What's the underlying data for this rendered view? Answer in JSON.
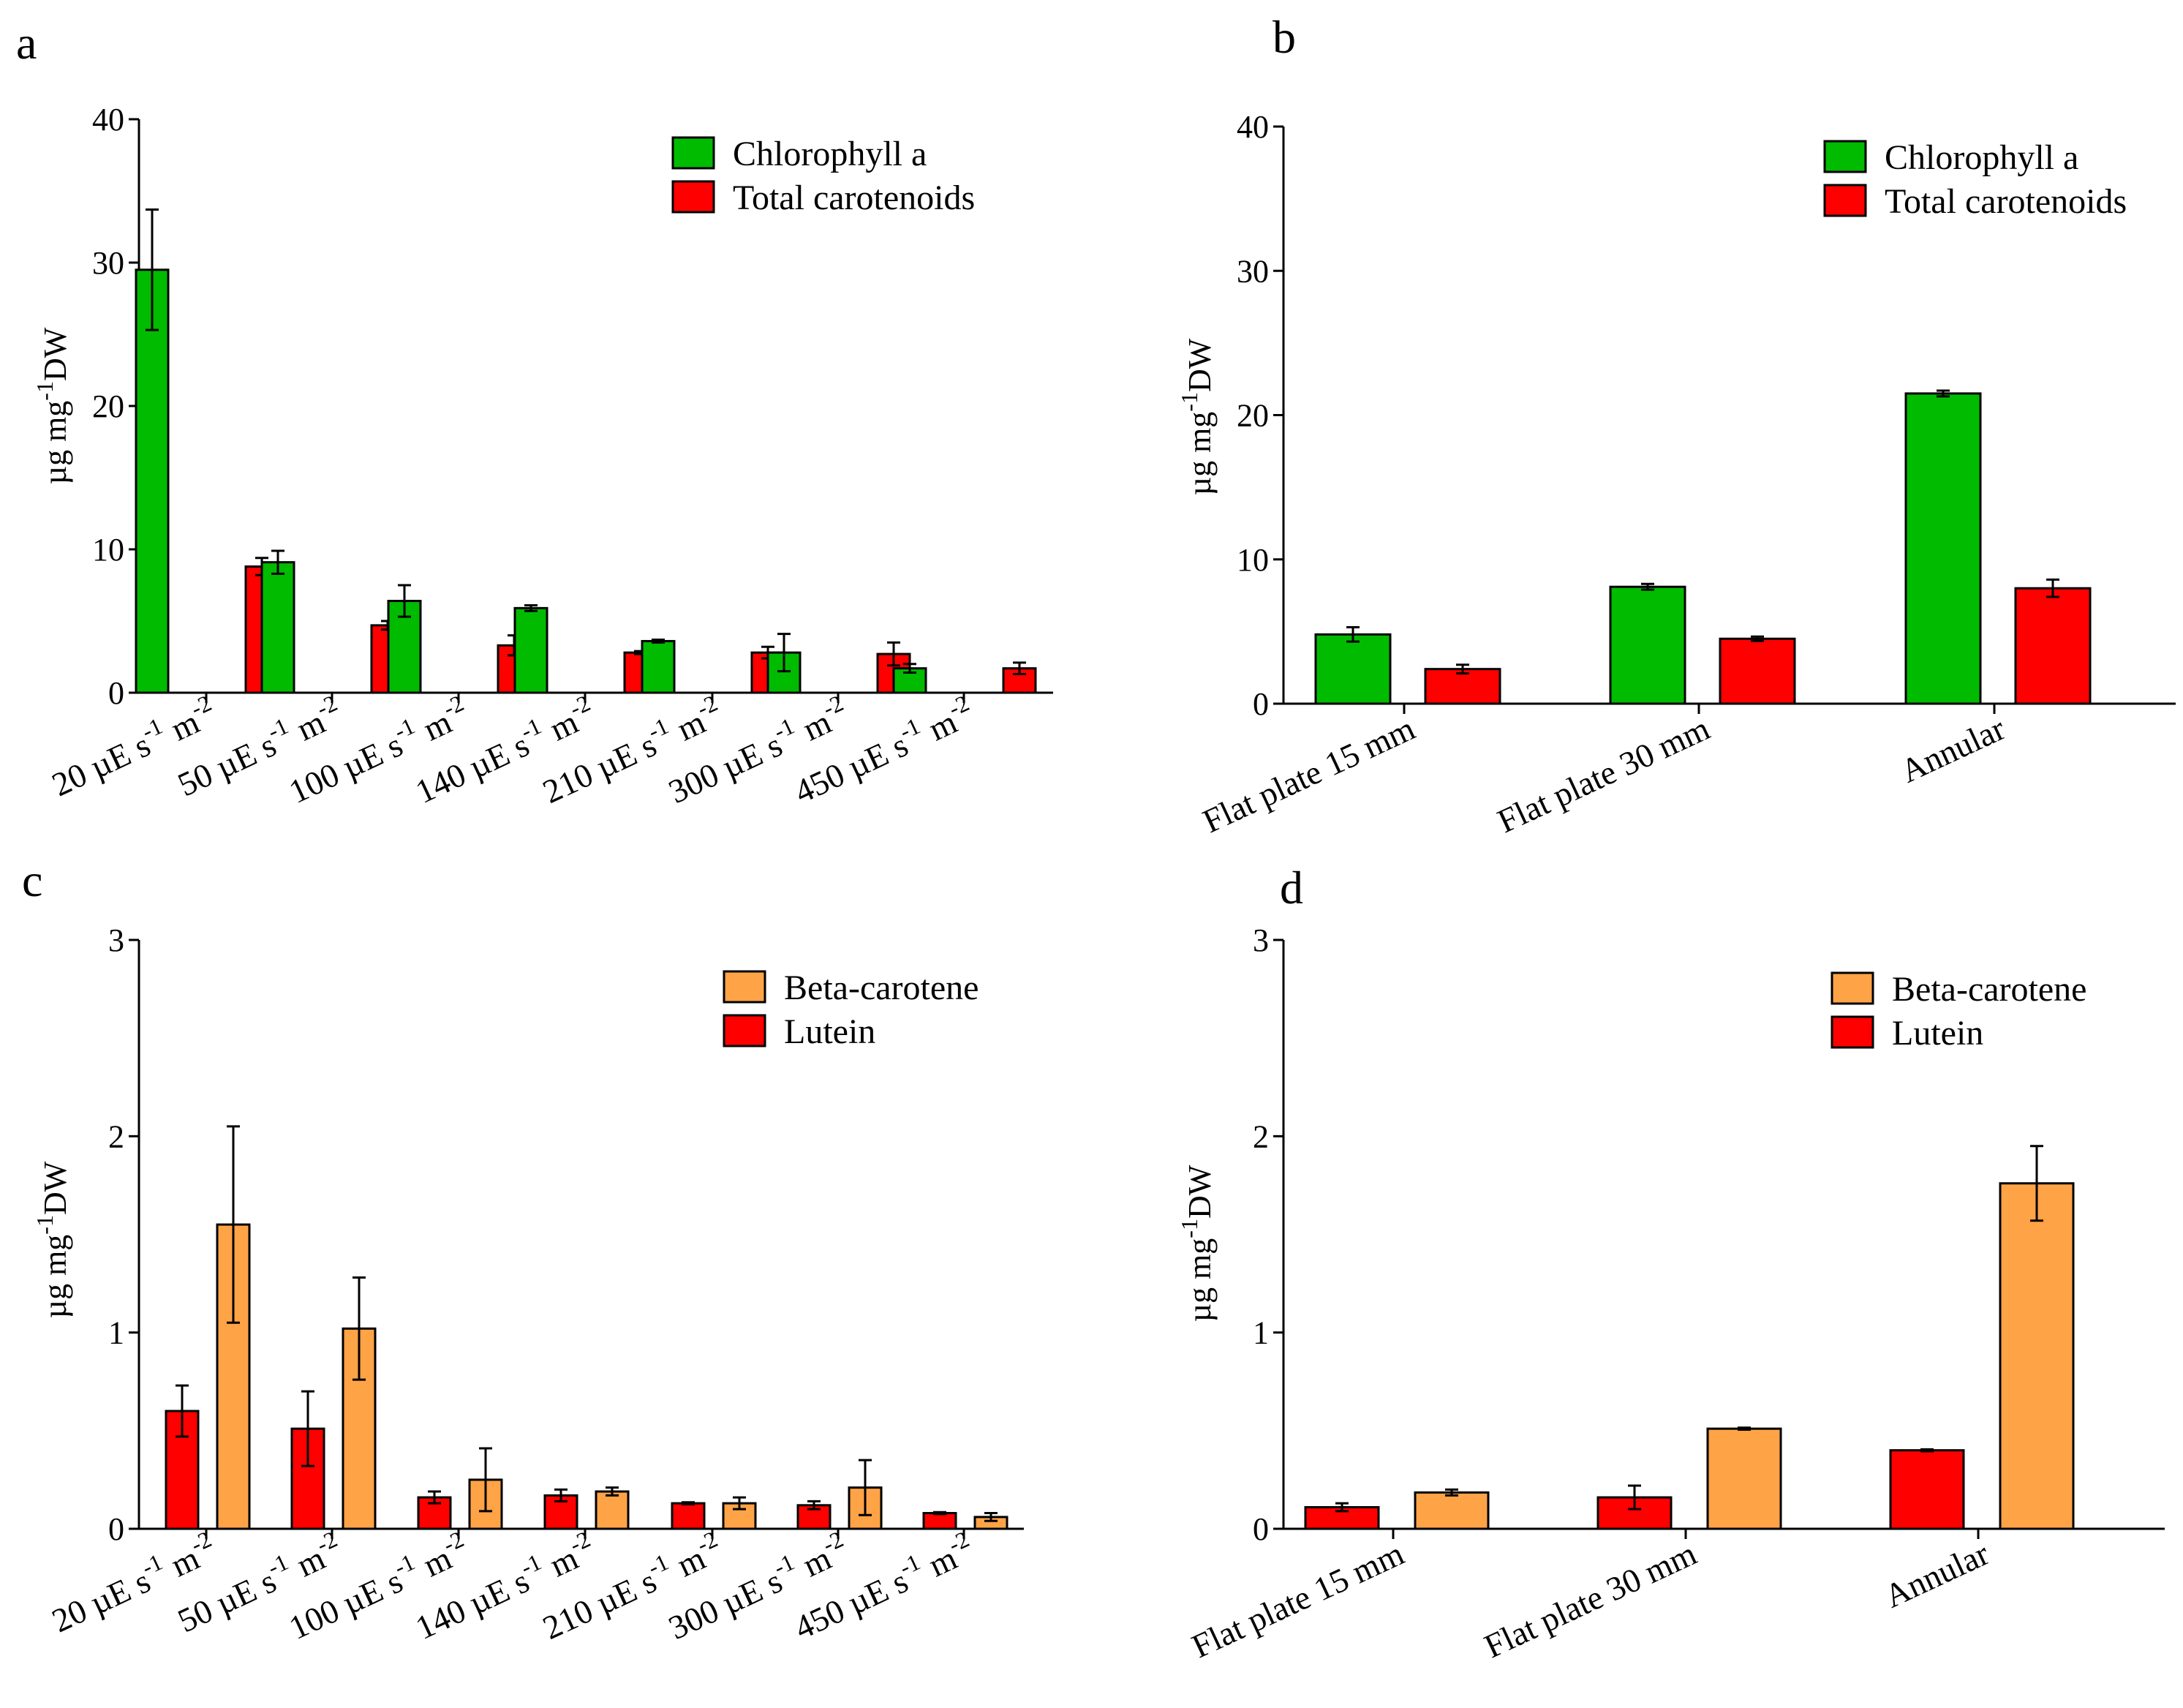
{
  "colors": {
    "chlorophyll": "#00bb00",
    "carotenoids": "#ff0000",
    "beta_carotene": "#ffa347",
    "lutein": "#ff0000"
  },
  "chart_data": [
    {
      "panel": "a",
      "type": "bar",
      "ylabel": "µg mg-1DW",
      "ylim": [
        0,
        40
      ],
      "yticks": [
        0,
        10,
        20,
        30,
        40
      ],
      "categories": [
        "20 µE s-1 m-2",
        "50 µE s-1 m-2",
        "100 µE s-1 m-2",
        "140 µE s-1 m-2",
        "210 µE s-1 m-2",
        "300 µE s-1 m-2",
        "450 µE s-1 m-2"
      ],
      "series": [
        {
          "name": "Chlorophyll a",
          "color": "#00bb00",
          "values": [
            29.5,
            9.1,
            6.4,
            5.9,
            3.6,
            2.8,
            1.7
          ],
          "errors": [
            4.2,
            0.8,
            1.1,
            0.2,
            0.1,
            1.3,
            0.3
          ]
        },
        {
          "name": "Total carotenoids",
          "color": "#ff0000",
          "values": [
            8.8,
            4.7,
            3.3,
            2.8,
            2.8,
            2.7,
            1.7
          ],
          "errors": [
            0.6,
            0.3,
            0.7,
            0.1,
            0.4,
            0.8,
            0.4
          ]
        }
      ]
    },
    {
      "panel": "b",
      "type": "bar",
      "ylabel": "µg mg-1DW",
      "ylim": [
        0,
        40
      ],
      "yticks": [
        0,
        10,
        20,
        30,
        40
      ],
      "categories": [
        "Flat plate 15 mm",
        "Flat plate 30 mm",
        "Annular"
      ],
      "series": [
        {
          "name": "Chlorophyll a",
          "color": "#00bb00",
          "values": [
            4.8,
            8.1,
            21.5
          ],
          "errors": [
            0.5,
            0.2,
            0.2
          ]
        },
        {
          "name": "Total carotenoids",
          "color": "#ff0000",
          "values": [
            2.4,
            4.5,
            8.0
          ],
          "errors": [
            0.3,
            0.15,
            0.6
          ]
        }
      ]
    },
    {
      "panel": "c",
      "type": "bar",
      "ylabel": "µg mg-1DW",
      "ylim": [
        0,
        3
      ],
      "yticks": [
        0,
        1,
        2,
        3
      ],
      "categories": [
        "20 µE s-1 m-2",
        "50 µE s-1 m-2",
        "100 µE s-1 m-2",
        "140 µE s-1 m-2",
        "210 µE s-1 m-2",
        "300 µE s-1 m-2",
        "450 µE s-1 m-2"
      ],
      "series": [
        {
          "name": "Lutein",
          "color": "#ff0000",
          "values": [
            0.6,
            0.51,
            0.16,
            0.17,
            0.13,
            0.12,
            0.08
          ],
          "errors": [
            0.13,
            0.19,
            0.03,
            0.03,
            0.005,
            0.02,
            0.005
          ]
        },
        {
          "name": "Beta-carotene",
          "color": "#ffa347",
          "values": [
            1.55,
            1.02,
            0.25,
            0.19,
            0.13,
            0.21,
            0.06
          ],
          "errors": [
            0.5,
            0.26,
            0.16,
            0.02,
            0.03,
            0.14,
            0.02
          ]
        }
      ]
    },
    {
      "panel": "d",
      "type": "bar",
      "ylabel": "µg mg-1DW",
      "ylim": [
        0,
        3
      ],
      "yticks": [
        0,
        1,
        2,
        3
      ],
      "categories": [
        "Flat plate 15 mm",
        "Flat plate 30 mm",
        "Annular"
      ],
      "series": [
        {
          "name": "Lutein",
          "color": "#ff0000",
          "values": [
            0.11,
            0.16,
            0.4
          ],
          "errors": [
            0.02,
            0.06,
            0.005
          ]
        },
        {
          "name": "Beta-carotene",
          "color": "#ffa347",
          "values": [
            0.185,
            0.51,
            1.76
          ],
          "errors": [
            0.015,
            0.005,
            0.19
          ]
        }
      ]
    }
  ],
  "legends": {
    "a": [
      {
        "label": "Chlorophyll a",
        "color": "#00bb00"
      },
      {
        "label": "Total carotenoids",
        "color": "#ff0000"
      }
    ],
    "b": [
      {
        "label": "Chlorophyll a",
        "color": "#00bb00"
      },
      {
        "label": "Total carotenoids",
        "color": "#ff0000"
      }
    ],
    "c": [
      {
        "label": "Beta-carotene",
        "color": "#ffa347"
      },
      {
        "label": "Lutein",
        "color": "#ff0000"
      }
    ],
    "d": [
      {
        "label": "Beta-carotene",
        "color": "#ffa347"
      },
      {
        "label": "Lutein",
        "color": "#ff0000"
      }
    ]
  }
}
